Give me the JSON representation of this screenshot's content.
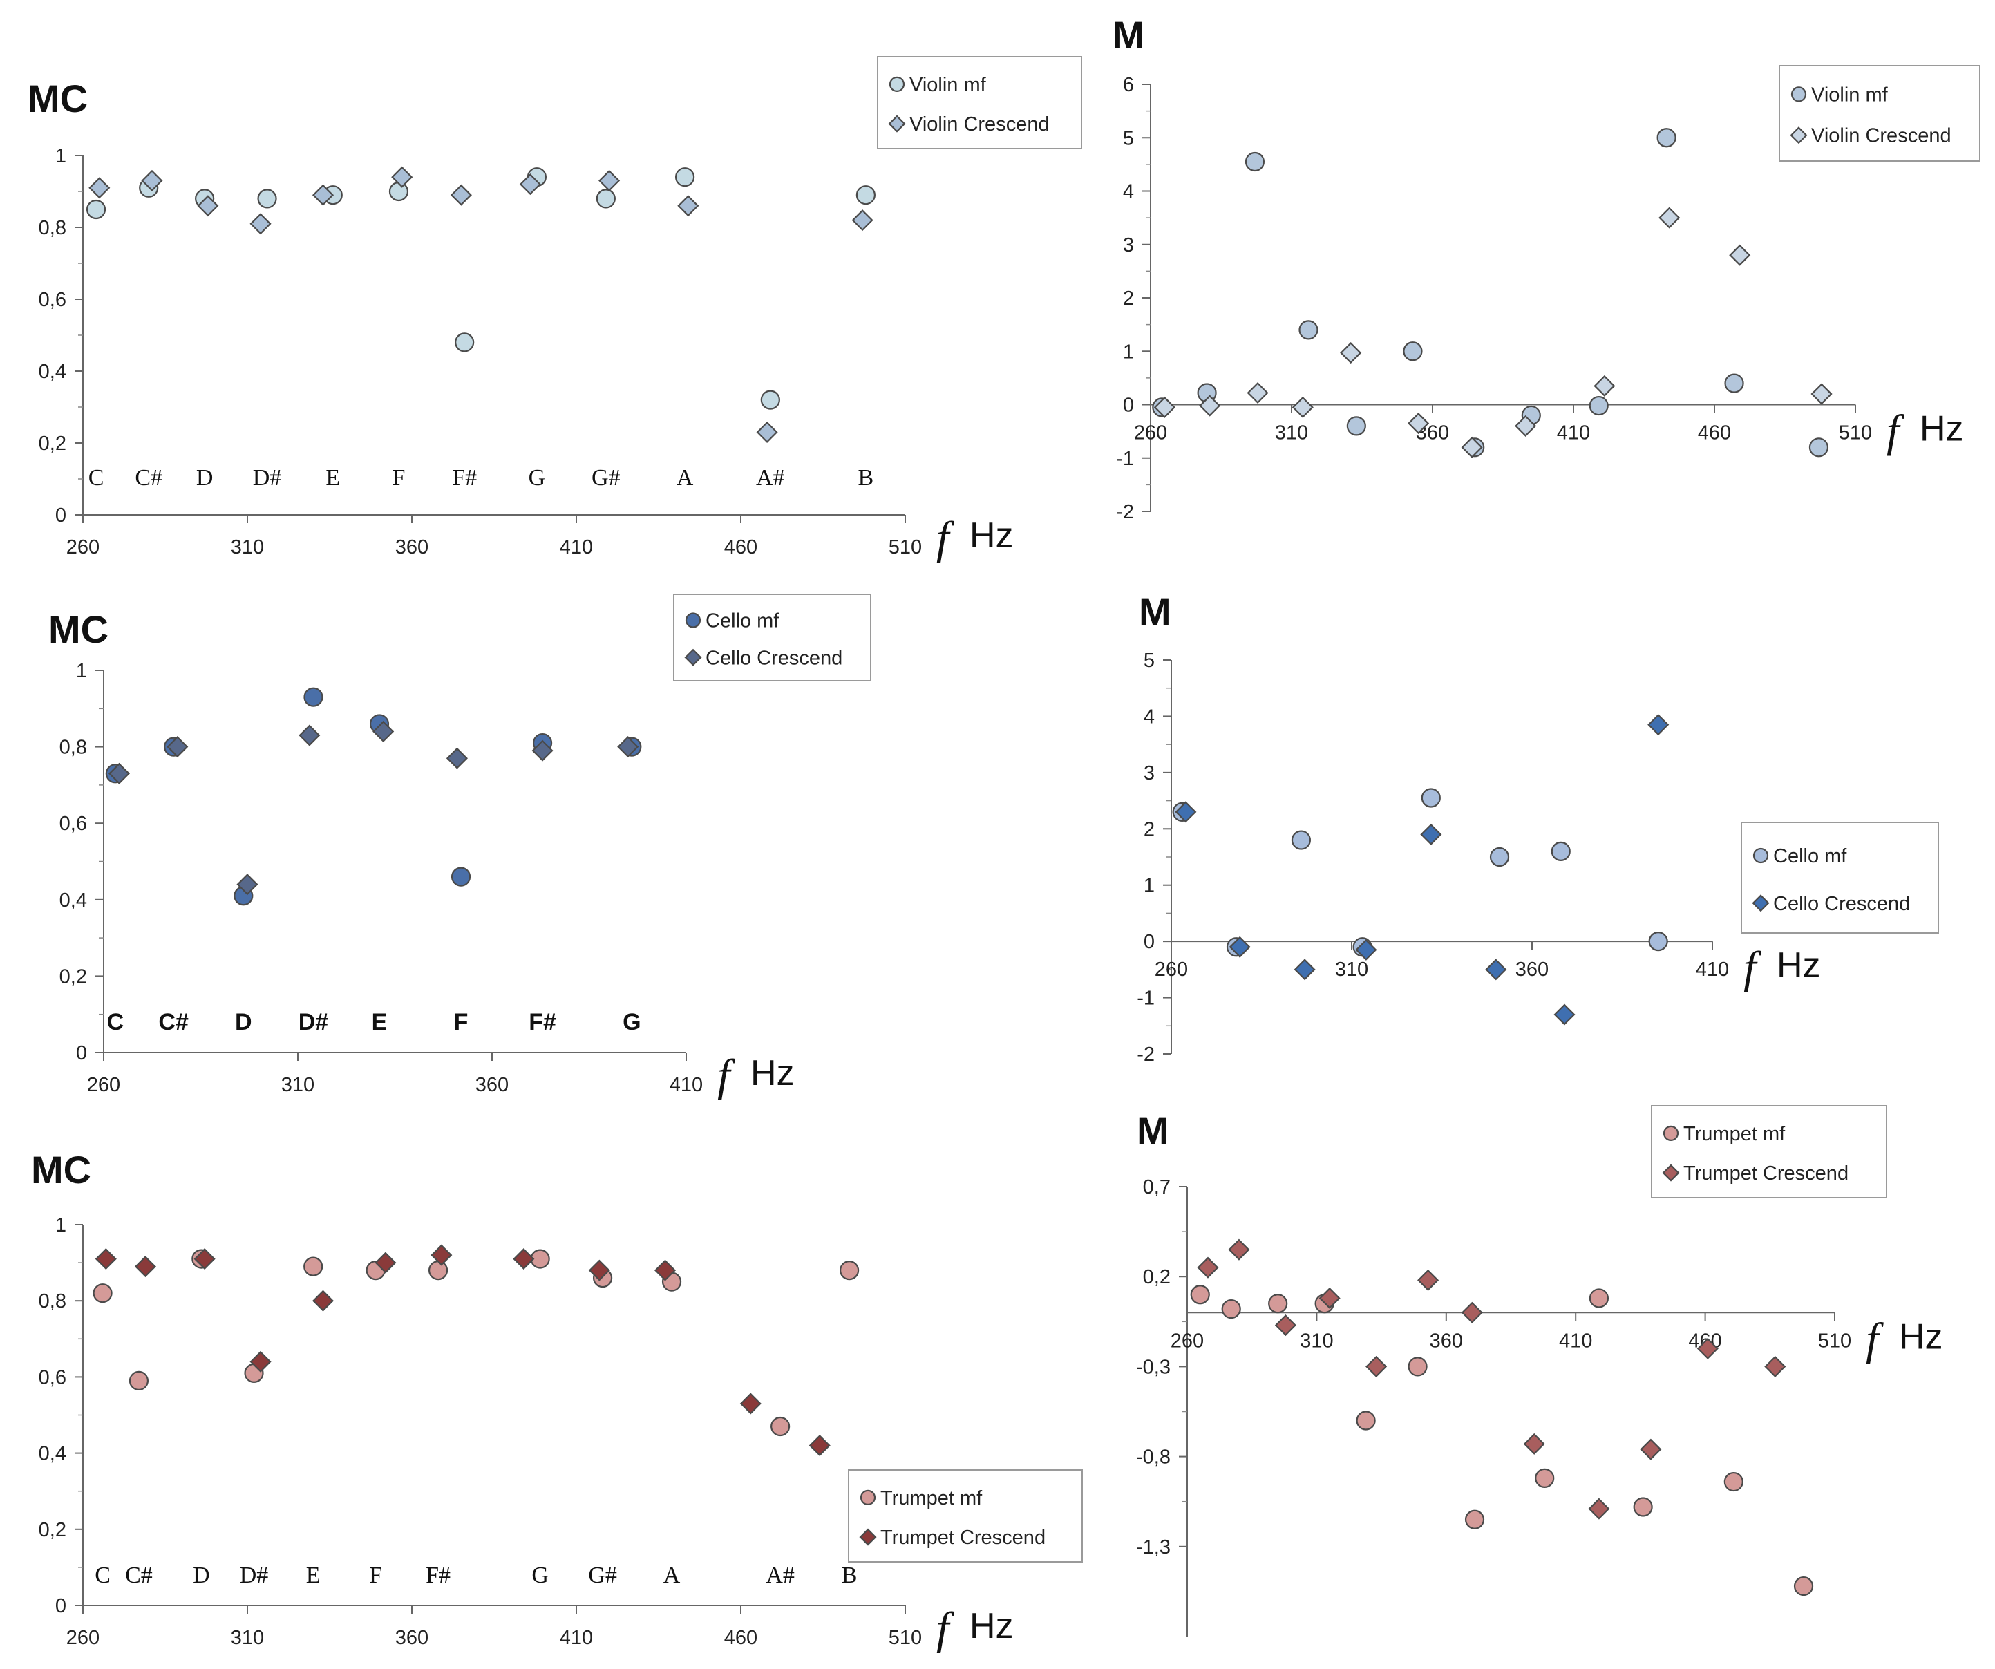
{
  "chart_data": [
    {
      "type": "scatter",
      "title": "MC",
      "xlabel_symbol": "f",
      "xlabel_unit": "Hz",
      "xlim": [
        260,
        510
      ],
      "ylim": [
        0,
        1
      ],
      "x_ticks": [
        "260",
        "310",
        "360",
        "410",
        "460",
        "510"
      ],
      "y_ticks": [
        "0",
        "0,2",
        "0,4",
        "0,6",
        "0,8",
        "1"
      ],
      "notes": [
        "C",
        "C#",
        "D",
        "D#",
        "E",
        "F",
        "F#",
        "G",
        "G#",
        "A",
        "A#",
        "B"
      ],
      "note_style": "serif",
      "colors": {
        "circle": "#c4dae3",
        "diamond": "#a9bed6"
      },
      "series": [
        {
          "name": "Violin mf",
          "marker": "circle",
          "x": [
            264,
            280,
            297,
            316,
            336,
            356,
            376,
            398,
            419,
            443,
            469,
            498
          ],
          "y": [
            0.85,
            0.91,
            0.88,
            0.88,
            0.89,
            0.9,
            0.48,
            0.94,
            0.88,
            0.94,
            0.32,
            0.89
          ]
        },
        {
          "name": "Violin Crescend",
          "marker": "diamond",
          "x": [
            265,
            281,
            298,
            314,
            333,
            357,
            375,
            396,
            420,
            444,
            468,
            497
          ],
          "y": [
            0.91,
            0.93,
            0.86,
            0.81,
            0.89,
            0.94,
            0.89,
            0.92,
            0.93,
            0.86,
            0.23,
            0.82
          ]
        }
      ]
    },
    {
      "type": "scatter",
      "title": "M",
      "xlabel_symbol": "f",
      "xlabel_unit": "Hz",
      "xlim": [
        260,
        510
      ],
      "ylim": [
        -2,
        6
      ],
      "x_ticks": [
        "260",
        "310",
        "360",
        "410",
        "460",
        "510"
      ],
      "y_ticks": [
        "-2",
        "-1",
        "0",
        "1",
        "2",
        "3",
        "4",
        "5",
        "6"
      ],
      "colors": {
        "circle": "#b3c6db",
        "diamond": "#c8d5e3"
      },
      "series": [
        {
          "name": "Violin mf",
          "marker": "circle",
          "x": [
            264,
            280,
            297,
            316,
            333,
            353,
            375,
            395,
            419,
            443,
            467,
            497
          ],
          "y": [
            -0.05,
            0.22,
            4.55,
            1.4,
            -0.4,
            1.0,
            -0.8,
            -0.2,
            -0.02,
            5.0,
            0.4,
            -0.8
          ]
        },
        {
          "name": "Violin Crescend",
          "marker": "diamond",
          "x": [
            265,
            281,
            298,
            314,
            331,
            355,
            374,
            393,
            421,
            444,
            469,
            498
          ],
          "y": [
            -0.05,
            -0.02,
            0.22,
            -0.05,
            0.97,
            -0.35,
            -0.8,
            -0.4,
            0.35,
            3.5,
            2.8,
            0.2
          ]
        }
      ]
    },
    {
      "type": "scatter",
      "title": "MC",
      "xlabel_symbol": "f",
      "xlabel_unit": "Hz",
      "xlim": [
        260,
        410
      ],
      "ylim": [
        0,
        1
      ],
      "x_ticks": [
        "260",
        "310",
        "360",
        "410"
      ],
      "y_ticks": [
        "0",
        "0,2",
        "0,4",
        "0,6",
        "0,8",
        "1"
      ],
      "notes": [
        "C",
        "C#",
        "D",
        "D#",
        "E",
        "F",
        "F#",
        "G"
      ],
      "note_style": "bold",
      "colors": {
        "circle": "#4a6fa8",
        "diamond": "#57688a"
      },
      "series": [
        {
          "name": "Cello mf",
          "marker": "circle",
          "x": [
            263,
            278,
            296,
            314,
            331,
            352,
            373,
            396
          ],
          "y": [
            0.73,
            0.8,
            0.41,
            0.93,
            0.86,
            0.46,
            0.81,
            0.8
          ]
        },
        {
          "name": "Cello Crescend",
          "marker": "diamond",
          "x": [
            264,
            279,
            297,
            313,
            332,
            351,
            373,
            395
          ],
          "y": [
            0.73,
            0.8,
            0.44,
            0.83,
            0.84,
            0.77,
            0.79,
            0.8
          ]
        }
      ]
    },
    {
      "type": "scatter",
      "title": "M",
      "xlabel_symbol": "f",
      "xlabel_unit": "Hz",
      "xlim": [
        260,
        410
      ],
      "ylim": [
        -2,
        5
      ],
      "x_ticks": [
        "260",
        "310",
        "360",
        "410"
      ],
      "y_ticks": [
        "-2",
        "-1",
        "0",
        "1",
        "2",
        "3",
        "4",
        "5"
      ],
      "colors": {
        "circle": "#a7bcdb",
        "diamond": "#3f6fb0"
      },
      "series": [
        {
          "name": "Cello mf",
          "marker": "circle",
          "x": [
            263,
            278,
            296,
            313,
            332,
            351,
            368,
            395
          ],
          "y": [
            2.3,
            -0.1,
            1.8,
            -0.1,
            2.55,
            1.5,
            1.6,
            0.0
          ]
        },
        {
          "name": "Cello Crescend",
          "marker": "diamond",
          "x": [
            264,
            279,
            297,
            314,
            332,
            350,
            369,
            395
          ],
          "y": [
            2.3,
            -0.1,
            -0.5,
            -0.15,
            1.9,
            -0.5,
            -1.3,
            3.85
          ]
        }
      ]
    },
    {
      "type": "scatter",
      "title": "MC",
      "xlabel_symbol": "f",
      "xlabel_unit": "Hz",
      "xlim": [
        260,
        510
      ],
      "ylim": [
        0,
        1
      ],
      "x_ticks": [
        "260",
        "310",
        "360",
        "410",
        "460",
        "510"
      ],
      "y_ticks": [
        "0",
        "0,2",
        "0,4",
        "0,6",
        "0,8",
        "1"
      ],
      "notes": [
        "C",
        "C#",
        "D",
        "D#",
        "E",
        "F",
        "F#",
        "G",
        "G#",
        "A",
        "A#",
        "B"
      ],
      "note_style": "serif",
      "colors": {
        "circle": "#d49a98",
        "diamond": "#8a3a3a"
      },
      "series": [
        {
          "name": "Trumpet mf",
          "marker": "circle",
          "x": [
            266,
            277,
            296,
            312,
            330,
            349,
            368,
            399,
            418,
            439,
            472,
            493
          ],
          "y": [
            0.82,
            0.59,
            0.91,
            0.61,
            0.89,
            0.88,
            0.88,
            0.91,
            0.86,
            0.85,
            0.47,
            0.88
          ]
        },
        {
          "name": "Trumpet Crescend",
          "marker": "diamond",
          "x": [
            267,
            279,
            297,
            314,
            333,
            352,
            369,
            394,
            417,
            437,
            463,
            484
          ],
          "y": [
            0.91,
            0.89,
            0.91,
            0.64,
            0.8,
            0.9,
            0.92,
            0.91,
            0.88,
            0.88,
            0.53,
            0.42
          ]
        }
      ]
    },
    {
      "type": "scatter",
      "title": "M",
      "xlabel_symbol": "f",
      "xlabel_unit": "Hz",
      "xlim": [
        260,
        510
      ],
      "ylim": [
        -1.8,
        0.7
      ],
      "x_ticks": [
        "260",
        "310",
        "360",
        "410",
        "460",
        "510"
      ],
      "y_ticks": [
        "0,7",
        "0,2",
        "-0,3",
        "-0,8",
        "-1,3"
      ],
      "y_tick_values": [
        0.7,
        0.2,
        -0.3,
        -0.8,
        -1.3
      ],
      "colors": {
        "circle": "#d49a98",
        "diamond": "#a85e5e"
      },
      "series": [
        {
          "name": "Trumpet mf",
          "marker": "circle",
          "x": [
            265,
            277,
            295,
            313,
            329,
            349,
            371,
            398,
            419,
            436,
            471,
            498
          ],
          "y": [
            0.1,
            0.02,
            0.05,
            0.05,
            -0.6,
            -0.3,
            -1.15,
            -0.92,
            0.08,
            -1.08,
            -0.94,
            -1.52
          ]
        },
        {
          "name": "Trumpet Crescend",
          "marker": "diamond",
          "x": [
            268,
            280,
            298,
            315,
            333,
            353,
            370,
            394,
            419,
            439,
            461,
            487
          ],
          "y": [
            0.25,
            0.35,
            -0.07,
            0.08,
            -0.3,
            0.18,
            0.0,
            -0.73,
            -1.09,
            -0.76,
            -0.2,
            -0.3
          ]
        }
      ]
    }
  ]
}
